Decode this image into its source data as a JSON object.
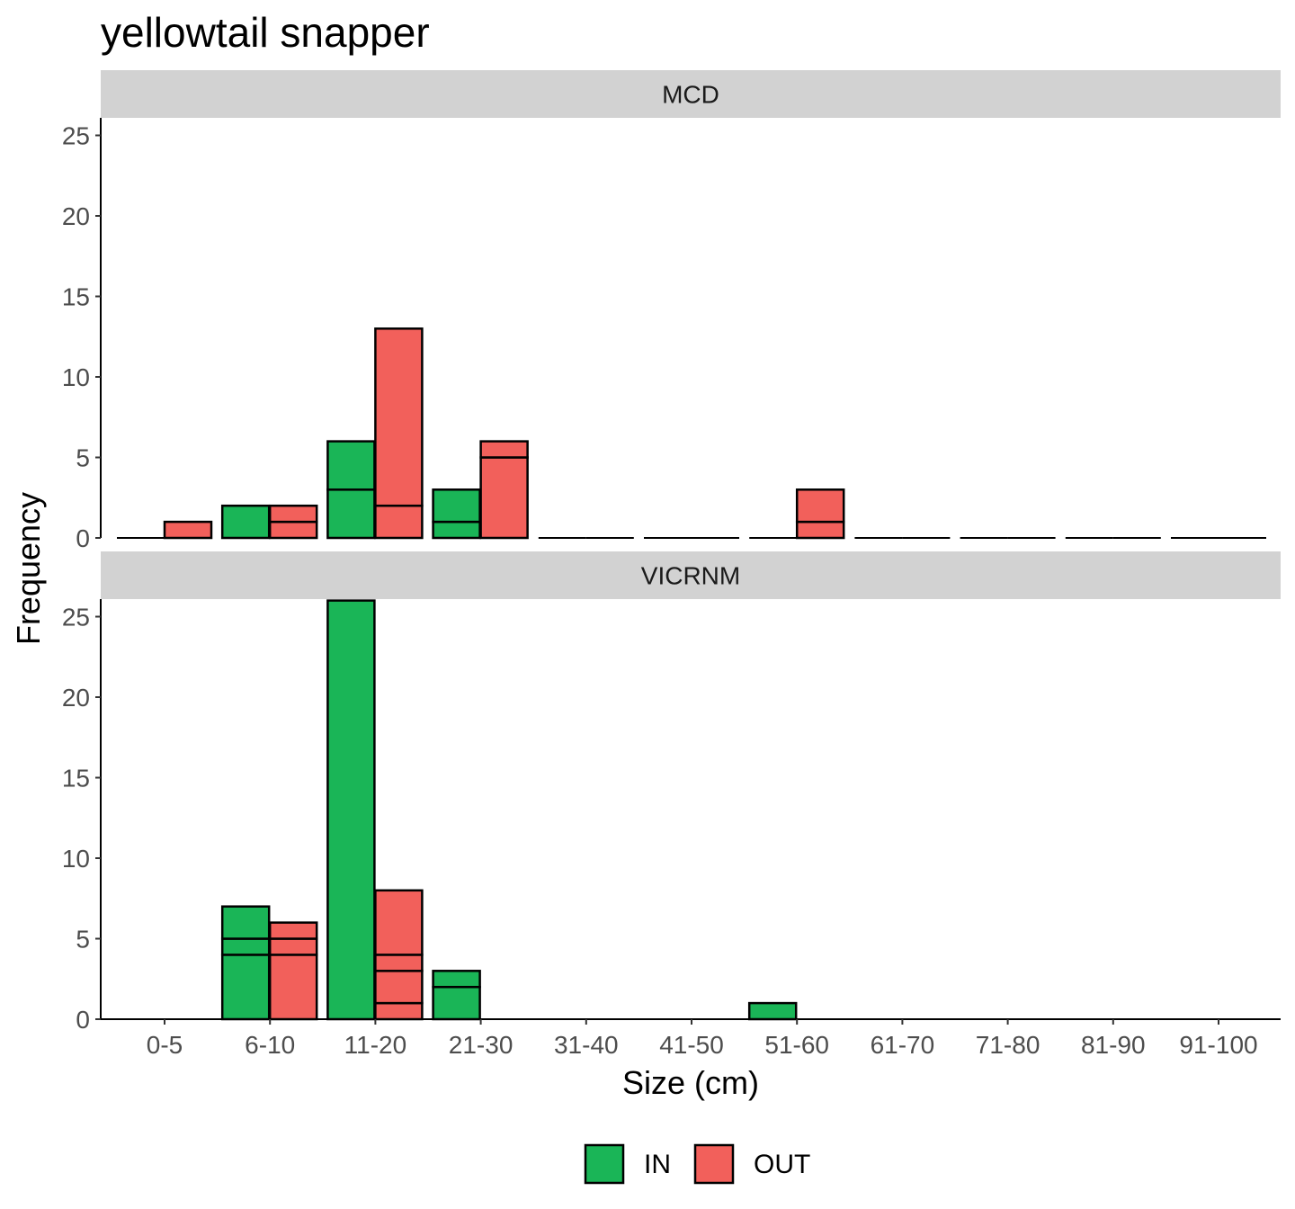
{
  "chart_data": {
    "type": "bar",
    "title": "yellowtail snapper",
    "xlabel": "Size (cm)",
    "ylabel": "Frequency",
    "ylim": [
      0,
      26
    ],
    "yticks": [
      0,
      5,
      10,
      15,
      20,
      25
    ],
    "categories": [
      "0-5",
      "6-10",
      "11-20",
      "21-30",
      "31-40",
      "41-50",
      "51-60",
      "61-70",
      "71-80",
      "81-90",
      "91-100"
    ],
    "legend": {
      "position": "bottom",
      "entries": [
        {
          "name": "IN",
          "color": "#1ab557"
        },
        {
          "name": "OUT",
          "color": "#f2605b"
        }
      ]
    },
    "grid": false,
    "series_order": [
      "IN",
      "OUT"
    ],
    "panels": [
      {
        "strip": "MCD",
        "series": [
          {
            "name": "IN",
            "values": [
              0,
              2,
              6,
              3,
              0,
              0,
              0,
              0,
              0,
              0,
              0
            ],
            "segments": [
              [],
              [
                2
              ],
              [
                3,
                3
              ],
              [
                1,
                2
              ],
              [],
              [],
              [],
              [],
              [],
              [],
              []
            ]
          },
          {
            "name": "OUT",
            "values": [
              1,
              2,
              13,
              6,
              0,
              0,
              3,
              0,
              0,
              0,
              0
            ],
            "segments": [
              [
                1
              ],
              [
                1,
                1
              ],
              [
                2,
                11
              ],
              [
                5,
                1
              ],
              [],
              [],
              [
                1,
                2
              ],
              [],
              [],
              [],
              []
            ]
          }
        ]
      },
      {
        "strip": "VICRNM",
        "series": [
          {
            "name": "IN",
            "values": [
              0,
              7,
              26,
              3,
              0,
              0,
              1,
              0,
              0,
              0,
              0
            ],
            "segments": [
              [],
              [
                4,
                1,
                2
              ],
              [
                26
              ],
              [
                2,
                1
              ],
              [],
              [],
              [
                1
              ],
              [],
              [],
              [],
              []
            ]
          },
          {
            "name": "OUT",
            "values": [
              0,
              6,
              8,
              0,
              0,
              0,
              0,
              0,
              0,
              0,
              0
            ],
            "segments": [
              [],
              [
                4,
                1,
                1
              ],
              [
                1,
                2,
                1,
                4
              ],
              [],
              [],
              [],
              [],
              [],
              [],
              [],
              []
            ]
          }
        ]
      }
    ]
  }
}
